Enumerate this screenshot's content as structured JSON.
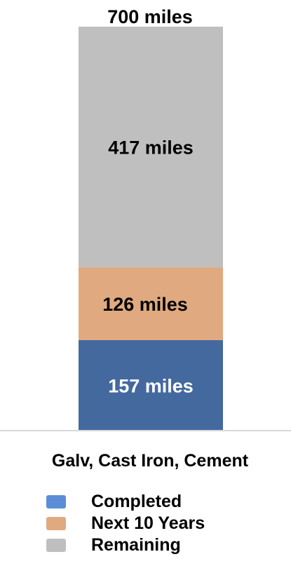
{
  "chart_data": {
    "type": "bar",
    "stacked": true,
    "categories": [
      "Galv, Cast Iron, Cement"
    ],
    "series": [
      {
        "name": "Completed",
        "values": [
          157
        ],
        "label": "157 miles",
        "color": "#44699f",
        "label_color": "#ffffff"
      },
      {
        "name": "Next 10 Years",
        "values": [
          126
        ],
        "label": "126 miles",
        "color": "#e0a97f",
        "label_color": "#000000"
      },
      {
        "name": "Remaining",
        "values": [
          417
        ],
        "label": "417 miles",
        "color": "#bfbfbf",
        "label_color": "#000000"
      }
    ],
    "total_label": "700 miles",
    "ylim": [
      0,
      700
    ],
    "grid": false,
    "legend": "bottom",
    "title": "",
    "xlabel": "",
    "ylabel": ""
  }
}
